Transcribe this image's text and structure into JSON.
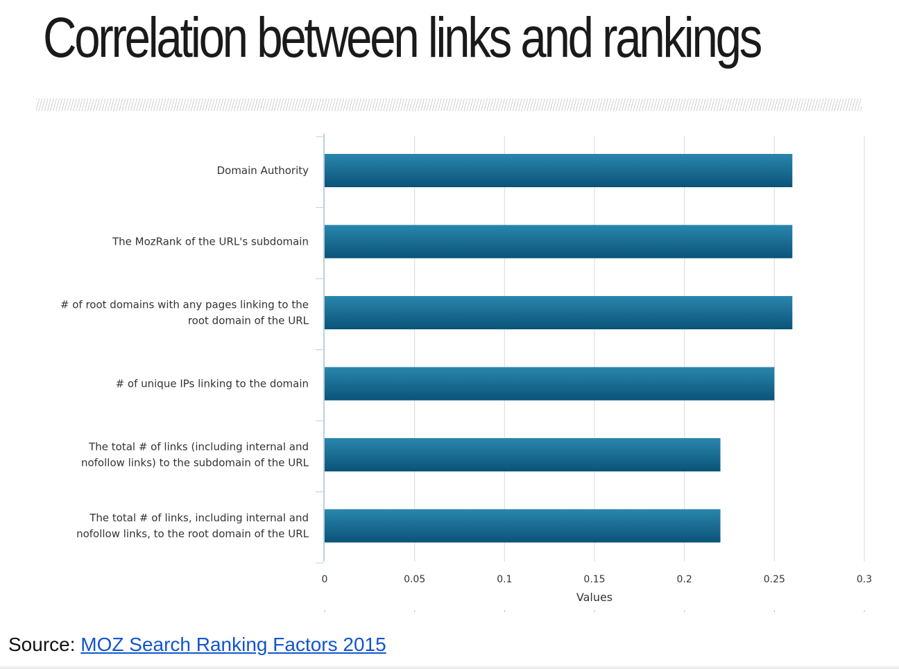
{
  "slide": {
    "title": "Correlation between links and rankings",
    "source_prefix": "Source: ",
    "source_link_text": "MOZ Search Ranking Factors 2015"
  },
  "chart_data": {
    "type": "bar",
    "orientation": "horizontal",
    "categories": [
      "Domain Authority",
      "The MozRank of the URL's subdomain",
      "# of root domains with any pages linking to the root domain of the URL",
      "# of unique IPs linking to the domain",
      "The total # of links (including internal and nofollow links) to the subdomain of the URL",
      "The total # of links, including internal and nofollow links, to the root domain of the URL"
    ],
    "category_lines": [
      [
        "Domain Authority"
      ],
      [
        "The MozRank of the URL's subdomain"
      ],
      [
        "# of root domains with any pages linking to the",
        "root domain of the URL"
      ],
      [
        "# of unique IPs linking to the domain"
      ],
      [
        "The total # of links (including internal and",
        "nofollow links) to the subdomain of the URL"
      ],
      [
        "The total # of links, including internal and",
        "nofollow links, to the root domain of the URL"
      ]
    ],
    "values": [
      0.26,
      0.26,
      0.26,
      0.25,
      0.22,
      0.22
    ],
    "xlabel": "Values",
    "xlim": [
      0,
      0.3
    ],
    "ticks": [
      0,
      0.05,
      0.1,
      0.15,
      0.2,
      0.25,
      0.3
    ],
    "tick_labels": [
      "0",
      "0.05",
      "0.1",
      "0.15",
      "0.2",
      "0.25",
      "0.3"
    ],
    "grid": true,
    "legend": "none",
    "colors": {
      "bar_top": "#2a86ad",
      "bar_bottom": "#0b5378",
      "grid": "#d9d9d9",
      "axis": "#b9cfe0",
      "text": "#333333"
    }
  }
}
